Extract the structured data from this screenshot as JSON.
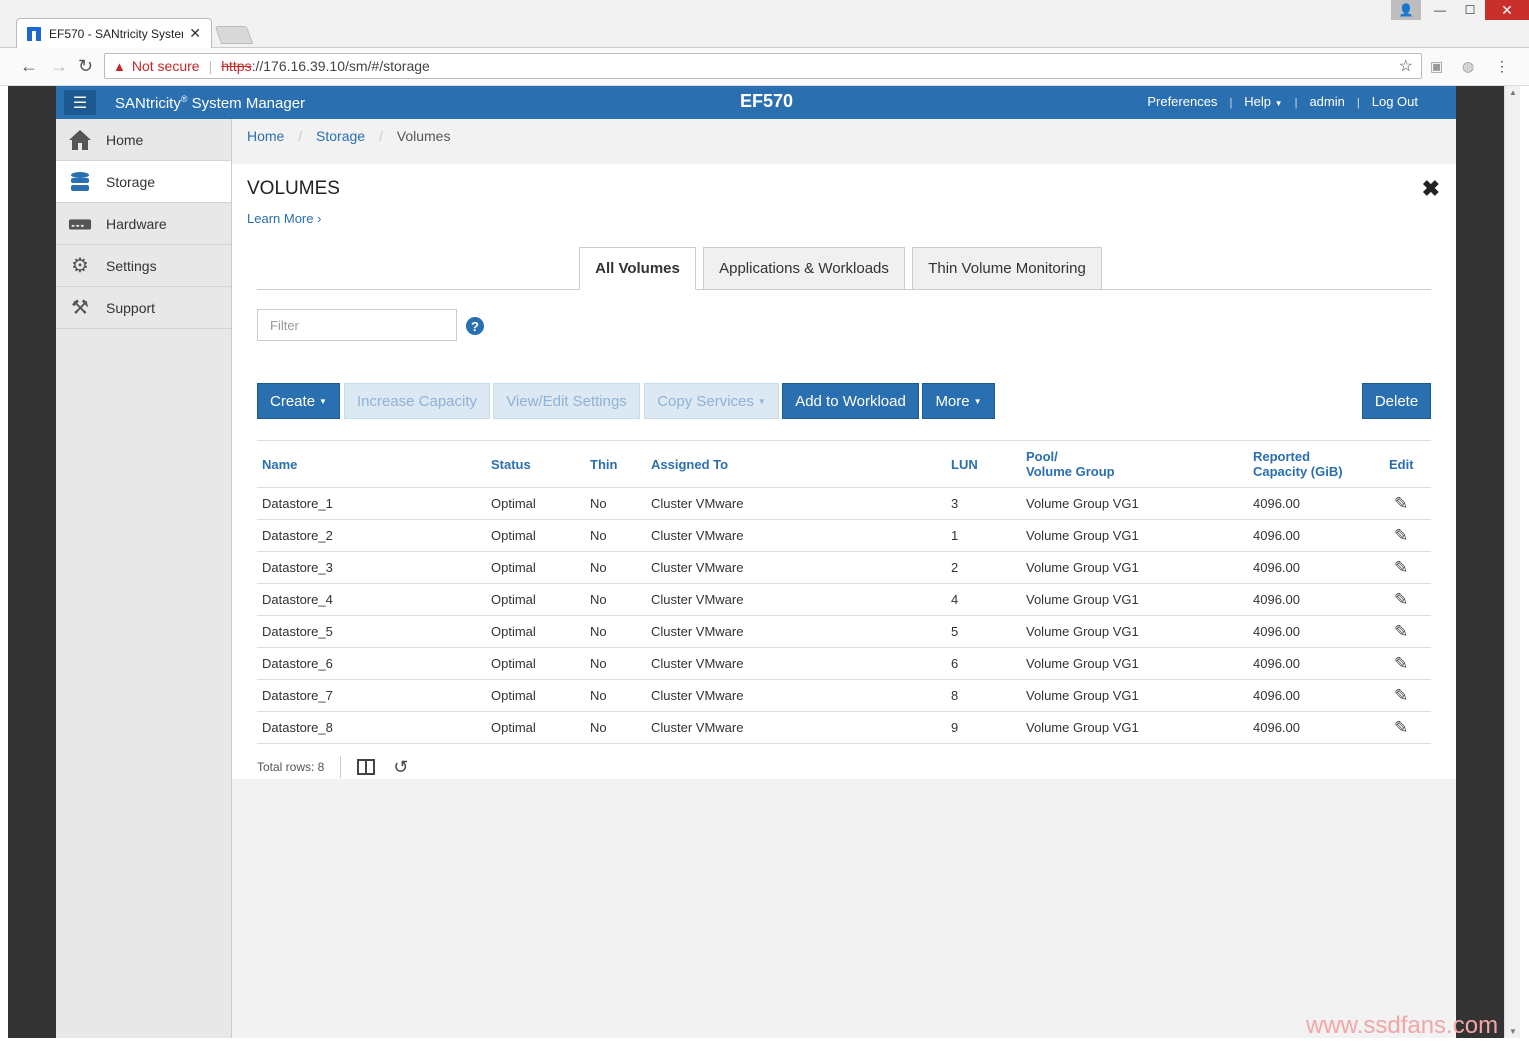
{
  "browser": {
    "tab_title": "EF570 - SANtricity Systen",
    "not_secure": "Not secure",
    "url_scheme": "https",
    "url_rest": "://176.16.39.10/sm/#/storage"
  },
  "header": {
    "app_name": "SANtricity",
    "app_reg": "®",
    "app_suffix": " System Manager",
    "system_name": "EF570",
    "links": [
      "Preferences",
      "Help",
      "admin",
      "Log Out"
    ]
  },
  "sidebar": {
    "items": [
      {
        "label": "Home",
        "icon": "home-icon"
      },
      {
        "label": "Storage",
        "icon": "storage-icon",
        "active": true
      },
      {
        "label": "Hardware",
        "icon": "hardware-icon"
      },
      {
        "label": "Settings",
        "icon": "gear-icon"
      },
      {
        "label": "Support",
        "icon": "tools-icon"
      }
    ]
  },
  "breadcrumb": [
    "Home",
    "Storage",
    "Volumes"
  ],
  "page": {
    "title": "VOLUMES",
    "learn_more": "Learn More ›"
  },
  "tabs": [
    "All Volumes",
    "Applications & Workloads",
    "Thin Volume Monitoring"
  ],
  "filter": {
    "placeholder": "Filter"
  },
  "toolbar": {
    "create": "Create",
    "increase_capacity": "Increase Capacity",
    "view_edit": "View/Edit Settings",
    "copy_services": "Copy Services",
    "add_to_workload": "Add to Workload",
    "more": "More",
    "delete": "Delete"
  },
  "table": {
    "headers": {
      "name": "Name",
      "status": "Status",
      "thin": "Thin",
      "assigned_to": "Assigned To",
      "lun": "LUN",
      "pool_1": "Pool/",
      "pool_2": "Volume Group",
      "capacity_1": "Reported",
      "capacity_2": "Capacity (GiB)",
      "edit": "Edit"
    },
    "rows": [
      {
        "name": "Datastore_1",
        "status": "Optimal",
        "thin": "No",
        "assigned": "Cluster VMware",
        "lun": "3",
        "pool": "Volume Group VG1",
        "capacity": "4096.00"
      },
      {
        "name": "Datastore_2",
        "status": "Optimal",
        "thin": "No",
        "assigned": "Cluster VMware",
        "lun": "1",
        "pool": "Volume Group VG1",
        "capacity": "4096.00"
      },
      {
        "name": "Datastore_3",
        "status": "Optimal",
        "thin": "No",
        "assigned": "Cluster VMware",
        "lun": "2",
        "pool": "Volume Group VG1",
        "capacity": "4096.00"
      },
      {
        "name": "Datastore_4",
        "status": "Optimal",
        "thin": "No",
        "assigned": "Cluster VMware",
        "lun": "4",
        "pool": "Volume Group VG1",
        "capacity": "4096.00"
      },
      {
        "name": "Datastore_5",
        "status": "Optimal",
        "thin": "No",
        "assigned": "Cluster VMware",
        "lun": "5",
        "pool": "Volume Group VG1",
        "capacity": "4096.00"
      },
      {
        "name": "Datastore_6",
        "status": "Optimal",
        "thin": "No",
        "assigned": "Cluster VMware",
        "lun": "6",
        "pool": "Volume Group VG1",
        "capacity": "4096.00"
      },
      {
        "name": "Datastore_7",
        "status": "Optimal",
        "thin": "No",
        "assigned": "Cluster VMware",
        "lun": "8",
        "pool": "Volume Group VG1",
        "capacity": "4096.00"
      },
      {
        "name": "Datastore_8",
        "status": "Optimal",
        "thin": "No",
        "assigned": "Cluster VMware",
        "lun": "9",
        "pool": "Volume Group VG1",
        "capacity": "4096.00"
      }
    ]
  },
  "footer": {
    "total_rows": "Total rows: 8"
  },
  "watermark": "www.ssdfans.com",
  "colors": {
    "brand": "#2a6fb0",
    "disabled": "#dce8f3"
  }
}
